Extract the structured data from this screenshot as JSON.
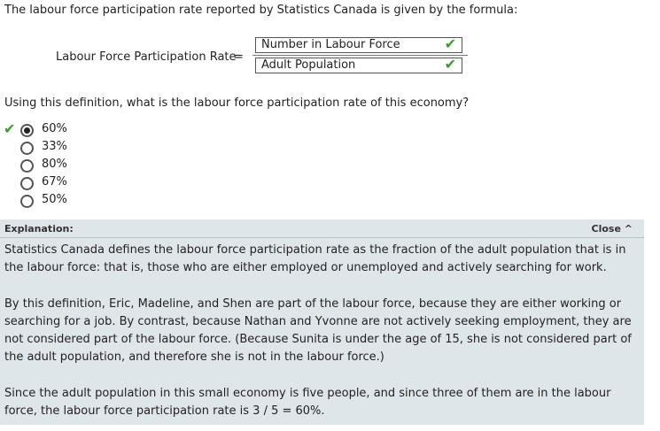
{
  "intro": "The labour force participation rate reported by Statistics Canada is given by the formula:",
  "formula": {
    "label": "Labour Force Participation Rate",
    "equals": "=",
    "numerator": "Number in Labour Force",
    "denominator": "Adult Population",
    "check_glyph": "✔"
  },
  "question": "Using this definition, what is the labour force participation rate of this economy?",
  "choices": [
    {
      "label": "60%",
      "selected": true,
      "correct": true
    },
    {
      "label": "33%",
      "selected": false
    },
    {
      "label": "80%",
      "selected": false
    },
    {
      "label": "67%",
      "selected": false
    },
    {
      "label": "50%",
      "selected": false
    }
  ],
  "explanation": {
    "title": "Explanation:",
    "close_label": "Close ^",
    "paragraphs": [
      "Statistics Canada defines the labour force participation rate as the fraction of the adult population that is in the labour force: that is, those who are either employed or unemployed and actively searching for work.",
      "By this definition, Eric, Madeline, and Shen are part of the labour force, because they are either working or searching for a job. By contrast, because Nathan and Yvonne are not actively seeking employment, they are not considered part of the labour force. (Because Sunita is under the age of 15, she is not considered part of the adult population, and therefore she is not in the labour force.)",
      "Since the adult population in this small economy is five people, and since three of them are in the labour force, the labour force participation rate is 3 / 5 = 60%."
    ]
  },
  "colors": {
    "check": "#3c9a2e",
    "explanation_bg": "#dfe6ea"
  }
}
